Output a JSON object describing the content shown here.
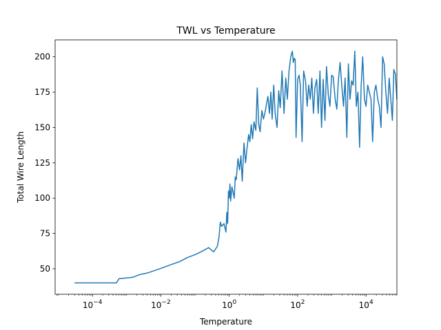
{
  "chart_data": {
    "type": "line",
    "title": "TWL vs Temperature",
    "xlabel": "Temperature",
    "ylabel": "Total Wire Length",
    "xscale": "log",
    "xlim": [
      8.1e-06,
      80000
    ],
    "ylim": [
      32,
      212
    ],
    "grid": false,
    "legend": "none",
    "x_ticks": [
      {
        "value": 0.0001,
        "base": "10",
        "exp": "−4"
      },
      {
        "value": 0.01,
        "base": "10",
        "exp": "−2"
      },
      {
        "value": 1,
        "base": "10",
        "exp": "0"
      },
      {
        "value": 100,
        "base": "10",
        "exp": "2"
      },
      {
        "value": 10000,
        "base": "10",
        "exp": "4"
      }
    ],
    "y_ticks": [
      {
        "value": 50,
        "label": "50"
      },
      {
        "value": 75,
        "label": "75"
      },
      {
        "value": 100,
        "label": "100"
      },
      {
        "value": 125,
        "label": "125"
      },
      {
        "value": 150,
        "label": "150"
      },
      {
        "value": 175,
        "label": "175"
      },
      {
        "value": 200,
        "label": "200"
      }
    ],
    "series": [
      {
        "color": "#1f77b4",
        "x": [
          3e-05,
          0.0005,
          0.0006,
          0.0015,
          0.0025,
          0.004,
          0.007,
          0.012,
          0.02,
          0.035,
          0.06,
          0.1,
          0.15,
          0.25,
          0.35,
          0.45,
          0.5,
          0.55,
          0.6,
          0.7,
          0.8,
          0.85,
          0.9,
          0.95,
          1.0,
          1.05,
          1.1,
          1.2,
          1.3,
          1.4,
          1.5,
          1.6,
          1.8,
          2.0,
          2.2,
          2.4,
          2.7,
          3.0,
          3.3,
          3.7,
          4.0,
          4.4,
          4.8,
          5.3,
          6.0,
          6.6,
          7.3,
          8.0,
          9.0,
          10,
          11,
          12,
          13.5,
          15,
          16.5,
          18,
          20,
          22,
          25,
          28,
          31,
          35,
          40,
          45,
          50,
          56,
          63,
          70,
          75,
          80,
          85,
          90,
          100,
          110,
          120,
          135,
          150,
          170,
          190,
          210,
          235,
          260,
          290,
          320,
          360,
          400,
          450,
          500,
          560,
          630,
          700,
          790,
          880,
          990,
          1100,
          1250,
          1400,
          1550,
          1750,
          1950,
          2200,
          2450,
          2750,
          3050,
          3400,
          3800,
          4200,
          4700,
          5200,
          5800,
          6500,
          7200,
          8000,
          9000,
          10000,
          11200,
          12500,
          14000,
          15600,
          17500,
          19500,
          22000,
          24500,
          27500,
          30500,
          34000,
          38000,
          42500,
          47500,
          53000,
          59000,
          65000,
          72000,
          80000
        ],
        "y": [
          40,
          40,
          43,
          44,
          46,
          47,
          49,
          51,
          53,
          55,
          58,
          60,
          62,
          65,
          62,
          66,
          72,
          83,
          80,
          82,
          76,
          90,
          82,
          105,
          100,
          110,
          98,
          108,
          104,
          100,
          115,
          113,
          128,
          120,
          130,
          112,
          139,
          125,
          135,
          145,
          140,
          152,
          142,
          154,
          148,
          178,
          152,
          147,
          162,
          156,
          160,
          165,
          172,
          160,
          175,
          156,
          180,
          160,
          150,
          176,
          164,
          190,
          160,
          185,
          170,
          190,
          200,
          204,
          196,
          199,
          198,
          143,
          184,
          187,
          180,
          140,
          190,
          183,
          165,
          180,
          170,
          185,
          160,
          178,
          184,
          160,
          190,
          150,
          184,
          155,
          193,
          173,
          165,
          187,
          186,
          170,
          163,
          183,
          196,
          180,
          165,
          185,
          143,
          195,
          170,
          183,
          180,
          204,
          165,
          175,
          136,
          179,
          200,
          170,
          165,
          180,
          175,
          170,
          140,
          175,
          180,
          170,
          165,
          150,
          200,
          195,
          175,
          160,
          185,
          170,
          155,
          191,
          188,
          170
        ]
      }
    ]
  }
}
